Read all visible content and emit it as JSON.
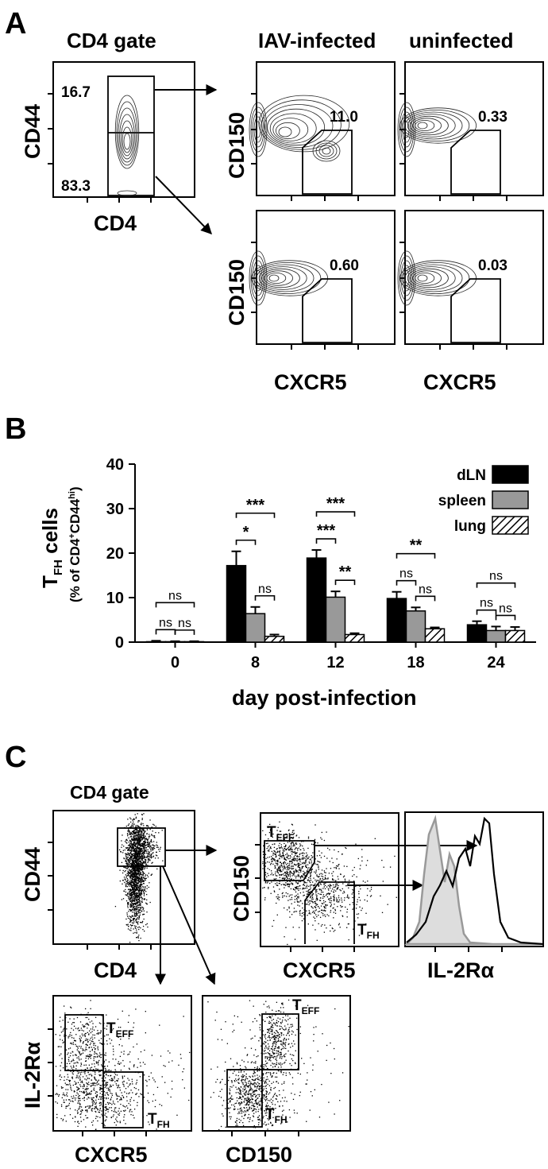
{
  "panel_labels": {
    "a": "A",
    "b": "B",
    "c": "C"
  },
  "panel_a": {
    "gate_title": "CD4 gate",
    "gate_x_label": "CD4",
    "gate_y_label": "CD44",
    "gate_high_pct": "16.7",
    "gate_low_pct": "83.3",
    "col_titles": [
      "IAV-infected",
      "uninfected"
    ],
    "row_y_label": "CD150",
    "x_label": "CXCR5",
    "plots": [
      {
        "value": "11.0",
        "infected": true,
        "gate": "high"
      },
      {
        "value": "0.33",
        "infected": false,
        "gate": "high"
      },
      {
        "value": "0.60",
        "infected": true,
        "gate": "low"
      },
      {
        "value": "0.03",
        "infected": false,
        "gate": "low"
      }
    ]
  },
  "chart_data": {
    "type": "bar",
    "title": "",
    "ylabel_main": "T",
    "ylabel_sub": "FH",
    "ylabel_rest": " cells",
    "ylabel_line2": "(% of CD4",
    "ylabel_line2_sup1": "+",
    "ylabel_line2_mid": "CD44",
    "ylabel_line2_sup2": "hi",
    "ylabel_line2_end": ")",
    "xlabel": "day post-infection",
    "ylim": [
      0,
      40
    ],
    "yticks": [
      "0",
      "10",
      "20",
      "30",
      "40"
    ],
    "categories": [
      "0",
      "8",
      "12",
      "18",
      "24"
    ],
    "series": [
      {
        "name": "dLN",
        "values": [
          0.1,
          17.2,
          18.9,
          9.8,
          3.9
        ],
        "errors": [
          0.2,
          3.2,
          1.8,
          1.5,
          0.8
        ],
        "color": "#000000"
      },
      {
        "name": "spleen",
        "values": [
          0.1,
          6.4,
          10.1,
          7.0,
          2.6
        ],
        "errors": [
          0.1,
          1.5,
          1.3,
          0.8,
          0.9
        ],
        "color": "#999999"
      },
      {
        "name": "lung",
        "values": [
          0.1,
          1.3,
          1.7,
          3.0,
          2.6
        ],
        "errors": [
          0.1,
          0.4,
          0.3,
          0.3,
          0.8
        ],
        "color": "hatch"
      }
    ],
    "significance": [
      {
        "cat": 0,
        "pair": "dLN-lung",
        "label": "ns"
      },
      {
        "cat": 0,
        "pair": "dLN-spleen",
        "label": "ns"
      },
      {
        "cat": 0,
        "pair": "spleen-lung",
        "label": "ns"
      },
      {
        "cat": 1,
        "pair": "dLN-lung",
        "label": "***"
      },
      {
        "cat": 1,
        "pair": "dLN-spleen",
        "label": "*"
      },
      {
        "cat": 1,
        "pair": "spleen-lung",
        "label": "ns"
      },
      {
        "cat": 2,
        "pair": "dLN-lung",
        "label": "***"
      },
      {
        "cat": 2,
        "pair": "dLN-spleen",
        "label": "***"
      },
      {
        "cat": 2,
        "pair": "spleen-lung",
        "label": "**"
      },
      {
        "cat": 3,
        "pair": "dLN-lung",
        "label": "**"
      },
      {
        "cat": 3,
        "pair": "dLN-spleen",
        "label": "ns"
      },
      {
        "cat": 3,
        "pair": "spleen-lung",
        "label": "ns"
      },
      {
        "cat": 4,
        "pair": "dLN-lung",
        "label": "ns"
      },
      {
        "cat": 4,
        "pair": "dLN-spleen",
        "label": "ns"
      },
      {
        "cat": 4,
        "pair": "spleen-lung",
        "label": "ns"
      }
    ],
    "legend": "top-right"
  },
  "panel_c": {
    "gate_title": "CD4 gate",
    "gate_x_label": "CD4",
    "gate_y_label": "CD44",
    "plot2_y_label": "CD150",
    "plot2_x_label": "CXCR5",
    "hist_x_label": "IL-2Rα",
    "plot4_y_label": "IL-2Rα",
    "plot4_x_label": "CXCR5",
    "plot5_x_label": "CD150",
    "teff_main": "T",
    "teff_sub": "EFF",
    "tfh_main": "T",
    "tfh_sub": "FH"
  }
}
